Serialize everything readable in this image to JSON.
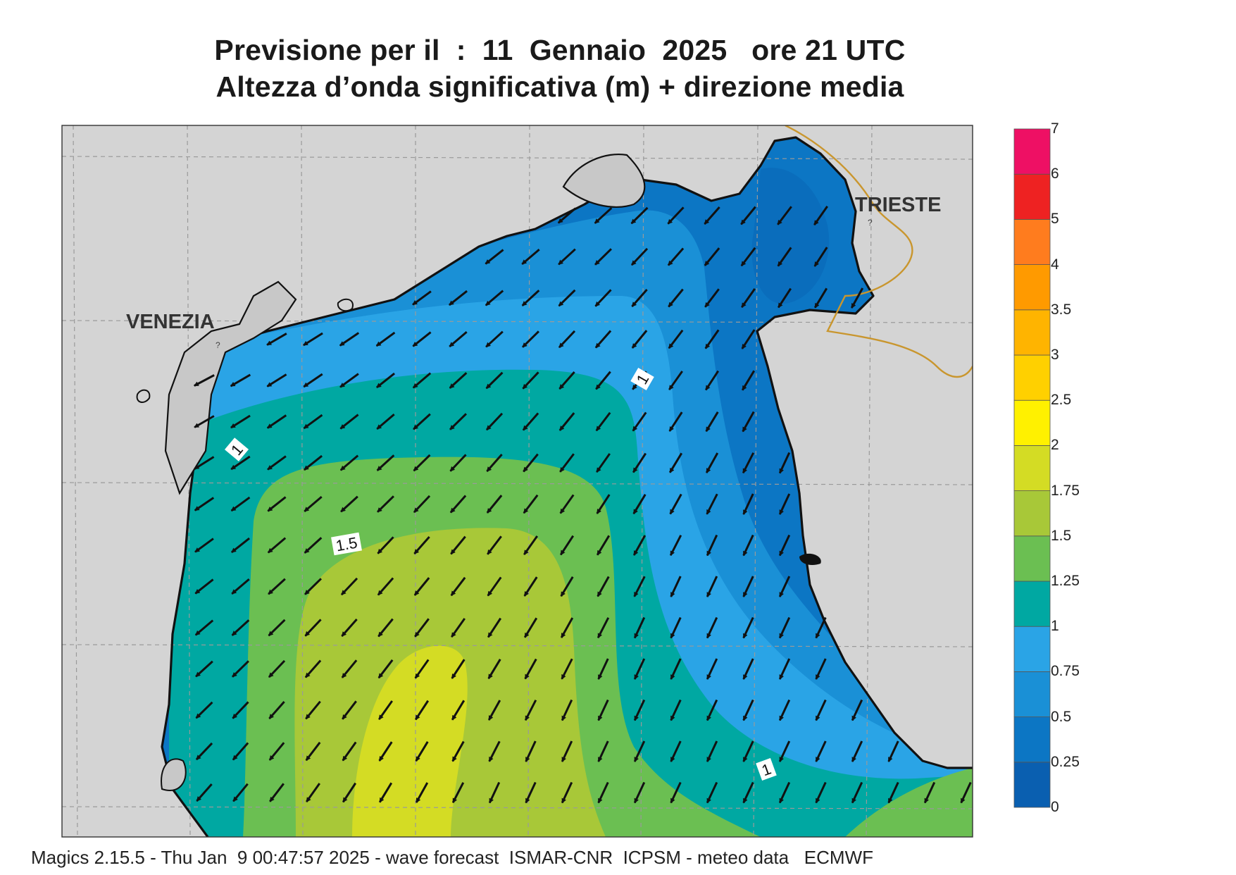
{
  "header": {
    "title_line1": "Previsione per il  :  11  Gennaio  2025   ore 21 UTC",
    "title_line2": "Altezza d’onda significativa (m) + direzione media"
  },
  "map": {
    "cities": [
      "VENEZIA",
      "TRIESTE"
    ],
    "contour_labels": [
      "1",
      "1",
      "1.5",
      "1"
    ],
    "land_color": "#d4d4d4",
    "coast_color": "#111111",
    "border_color": "#c9962e",
    "mean_wave_direction": "from north-east (arrows pointing south-west)"
  },
  "legend": {
    "levels": [
      "0",
      "0.25",
      "0.5",
      "0.75",
      "1",
      "1.25",
      "1.5",
      "1.75",
      "2",
      "2.5",
      "3",
      "3.5",
      "4",
      "5",
      "6",
      "7"
    ],
    "colors": [
      "#0a5fb0",
      "#0c76c4",
      "#1a90d6",
      "#2aa4e6",
      "#00a8a2",
      "#6bbf52",
      "#a8c838",
      "#d4dc24",
      "#fff100",
      "#ffd000",
      "#ffb400",
      "#ff9a00",
      "#ff7c1e",
      "#ee2222",
      "#ee1064"
    ]
  },
  "footer": {
    "text": "Magics 2.15.5 - Thu Jan  9 00:47:57 2025 - wave forecast  ISMAR-CNR  ICPSM - meteo data   ECMWF"
  }
}
